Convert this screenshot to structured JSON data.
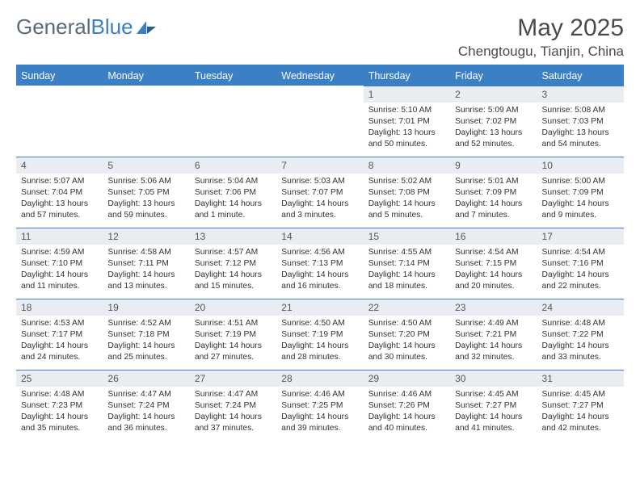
{
  "brand": {
    "part1": "General",
    "part2": "Blue"
  },
  "title": "May 2025",
  "location": "Chengtougu, Tianjin, China",
  "colors": {
    "accent": "#3b7fc4",
    "header_text": "#ffffff",
    "daynum_bg": "#e9edf1",
    "body_text": "#333333",
    "logo_gray": "#5a6a7a"
  },
  "weekdays": [
    "Sunday",
    "Monday",
    "Tuesday",
    "Wednesday",
    "Thursday",
    "Friday",
    "Saturday"
  ],
  "calendar": {
    "type": "table",
    "first_weekday_index": 4,
    "days": [
      {
        "n": 1,
        "sr": "5:10 AM",
        "ss": "7:01 PM",
        "dl": "13 hours and 50 minutes."
      },
      {
        "n": 2,
        "sr": "5:09 AM",
        "ss": "7:02 PM",
        "dl": "13 hours and 52 minutes."
      },
      {
        "n": 3,
        "sr": "5:08 AM",
        "ss": "7:03 PM",
        "dl": "13 hours and 54 minutes."
      },
      {
        "n": 4,
        "sr": "5:07 AM",
        "ss": "7:04 PM",
        "dl": "13 hours and 57 minutes."
      },
      {
        "n": 5,
        "sr": "5:06 AM",
        "ss": "7:05 PM",
        "dl": "13 hours and 59 minutes."
      },
      {
        "n": 6,
        "sr": "5:04 AM",
        "ss": "7:06 PM",
        "dl": "14 hours and 1 minute."
      },
      {
        "n": 7,
        "sr": "5:03 AM",
        "ss": "7:07 PM",
        "dl": "14 hours and 3 minutes."
      },
      {
        "n": 8,
        "sr": "5:02 AM",
        "ss": "7:08 PM",
        "dl": "14 hours and 5 minutes."
      },
      {
        "n": 9,
        "sr": "5:01 AM",
        "ss": "7:09 PM",
        "dl": "14 hours and 7 minutes."
      },
      {
        "n": 10,
        "sr": "5:00 AM",
        "ss": "7:09 PM",
        "dl": "14 hours and 9 minutes."
      },
      {
        "n": 11,
        "sr": "4:59 AM",
        "ss": "7:10 PM",
        "dl": "14 hours and 11 minutes."
      },
      {
        "n": 12,
        "sr": "4:58 AM",
        "ss": "7:11 PM",
        "dl": "14 hours and 13 minutes."
      },
      {
        "n": 13,
        "sr": "4:57 AM",
        "ss": "7:12 PM",
        "dl": "14 hours and 15 minutes."
      },
      {
        "n": 14,
        "sr": "4:56 AM",
        "ss": "7:13 PM",
        "dl": "14 hours and 16 minutes."
      },
      {
        "n": 15,
        "sr": "4:55 AM",
        "ss": "7:14 PM",
        "dl": "14 hours and 18 minutes."
      },
      {
        "n": 16,
        "sr": "4:54 AM",
        "ss": "7:15 PM",
        "dl": "14 hours and 20 minutes."
      },
      {
        "n": 17,
        "sr": "4:54 AM",
        "ss": "7:16 PM",
        "dl": "14 hours and 22 minutes."
      },
      {
        "n": 18,
        "sr": "4:53 AM",
        "ss": "7:17 PM",
        "dl": "14 hours and 24 minutes."
      },
      {
        "n": 19,
        "sr": "4:52 AM",
        "ss": "7:18 PM",
        "dl": "14 hours and 25 minutes."
      },
      {
        "n": 20,
        "sr": "4:51 AM",
        "ss": "7:19 PM",
        "dl": "14 hours and 27 minutes."
      },
      {
        "n": 21,
        "sr": "4:50 AM",
        "ss": "7:19 PM",
        "dl": "14 hours and 28 minutes."
      },
      {
        "n": 22,
        "sr": "4:50 AM",
        "ss": "7:20 PM",
        "dl": "14 hours and 30 minutes."
      },
      {
        "n": 23,
        "sr": "4:49 AM",
        "ss": "7:21 PM",
        "dl": "14 hours and 32 minutes."
      },
      {
        "n": 24,
        "sr": "4:48 AM",
        "ss": "7:22 PM",
        "dl": "14 hours and 33 minutes."
      },
      {
        "n": 25,
        "sr": "4:48 AM",
        "ss": "7:23 PM",
        "dl": "14 hours and 35 minutes."
      },
      {
        "n": 26,
        "sr": "4:47 AM",
        "ss": "7:24 PM",
        "dl": "14 hours and 36 minutes."
      },
      {
        "n": 27,
        "sr": "4:47 AM",
        "ss": "7:24 PM",
        "dl": "14 hours and 37 minutes."
      },
      {
        "n": 28,
        "sr": "4:46 AM",
        "ss": "7:25 PM",
        "dl": "14 hours and 39 minutes."
      },
      {
        "n": 29,
        "sr": "4:46 AM",
        "ss": "7:26 PM",
        "dl": "14 hours and 40 minutes."
      },
      {
        "n": 30,
        "sr": "4:45 AM",
        "ss": "7:27 PM",
        "dl": "14 hours and 41 minutes."
      },
      {
        "n": 31,
        "sr": "4:45 AM",
        "ss": "7:27 PM",
        "dl": "14 hours and 42 minutes."
      }
    ]
  },
  "labels": {
    "sunrise": "Sunrise:",
    "sunset": "Sunset:",
    "daylight": "Daylight:"
  }
}
